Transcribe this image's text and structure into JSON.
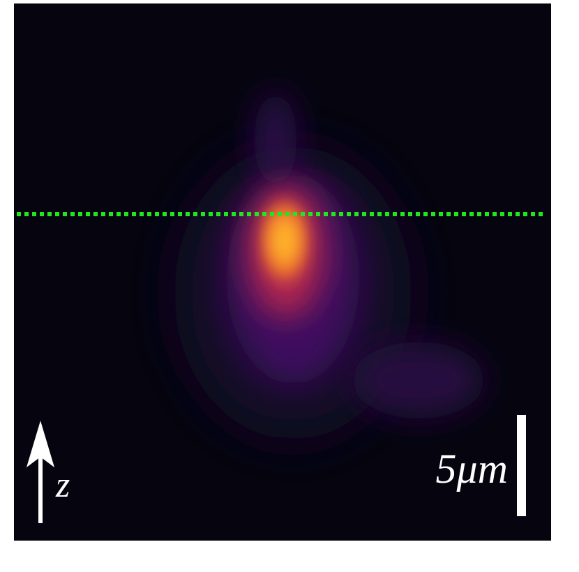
{
  "labels": {
    "axis": "z",
    "scale_bar": "5μm"
  }
}
